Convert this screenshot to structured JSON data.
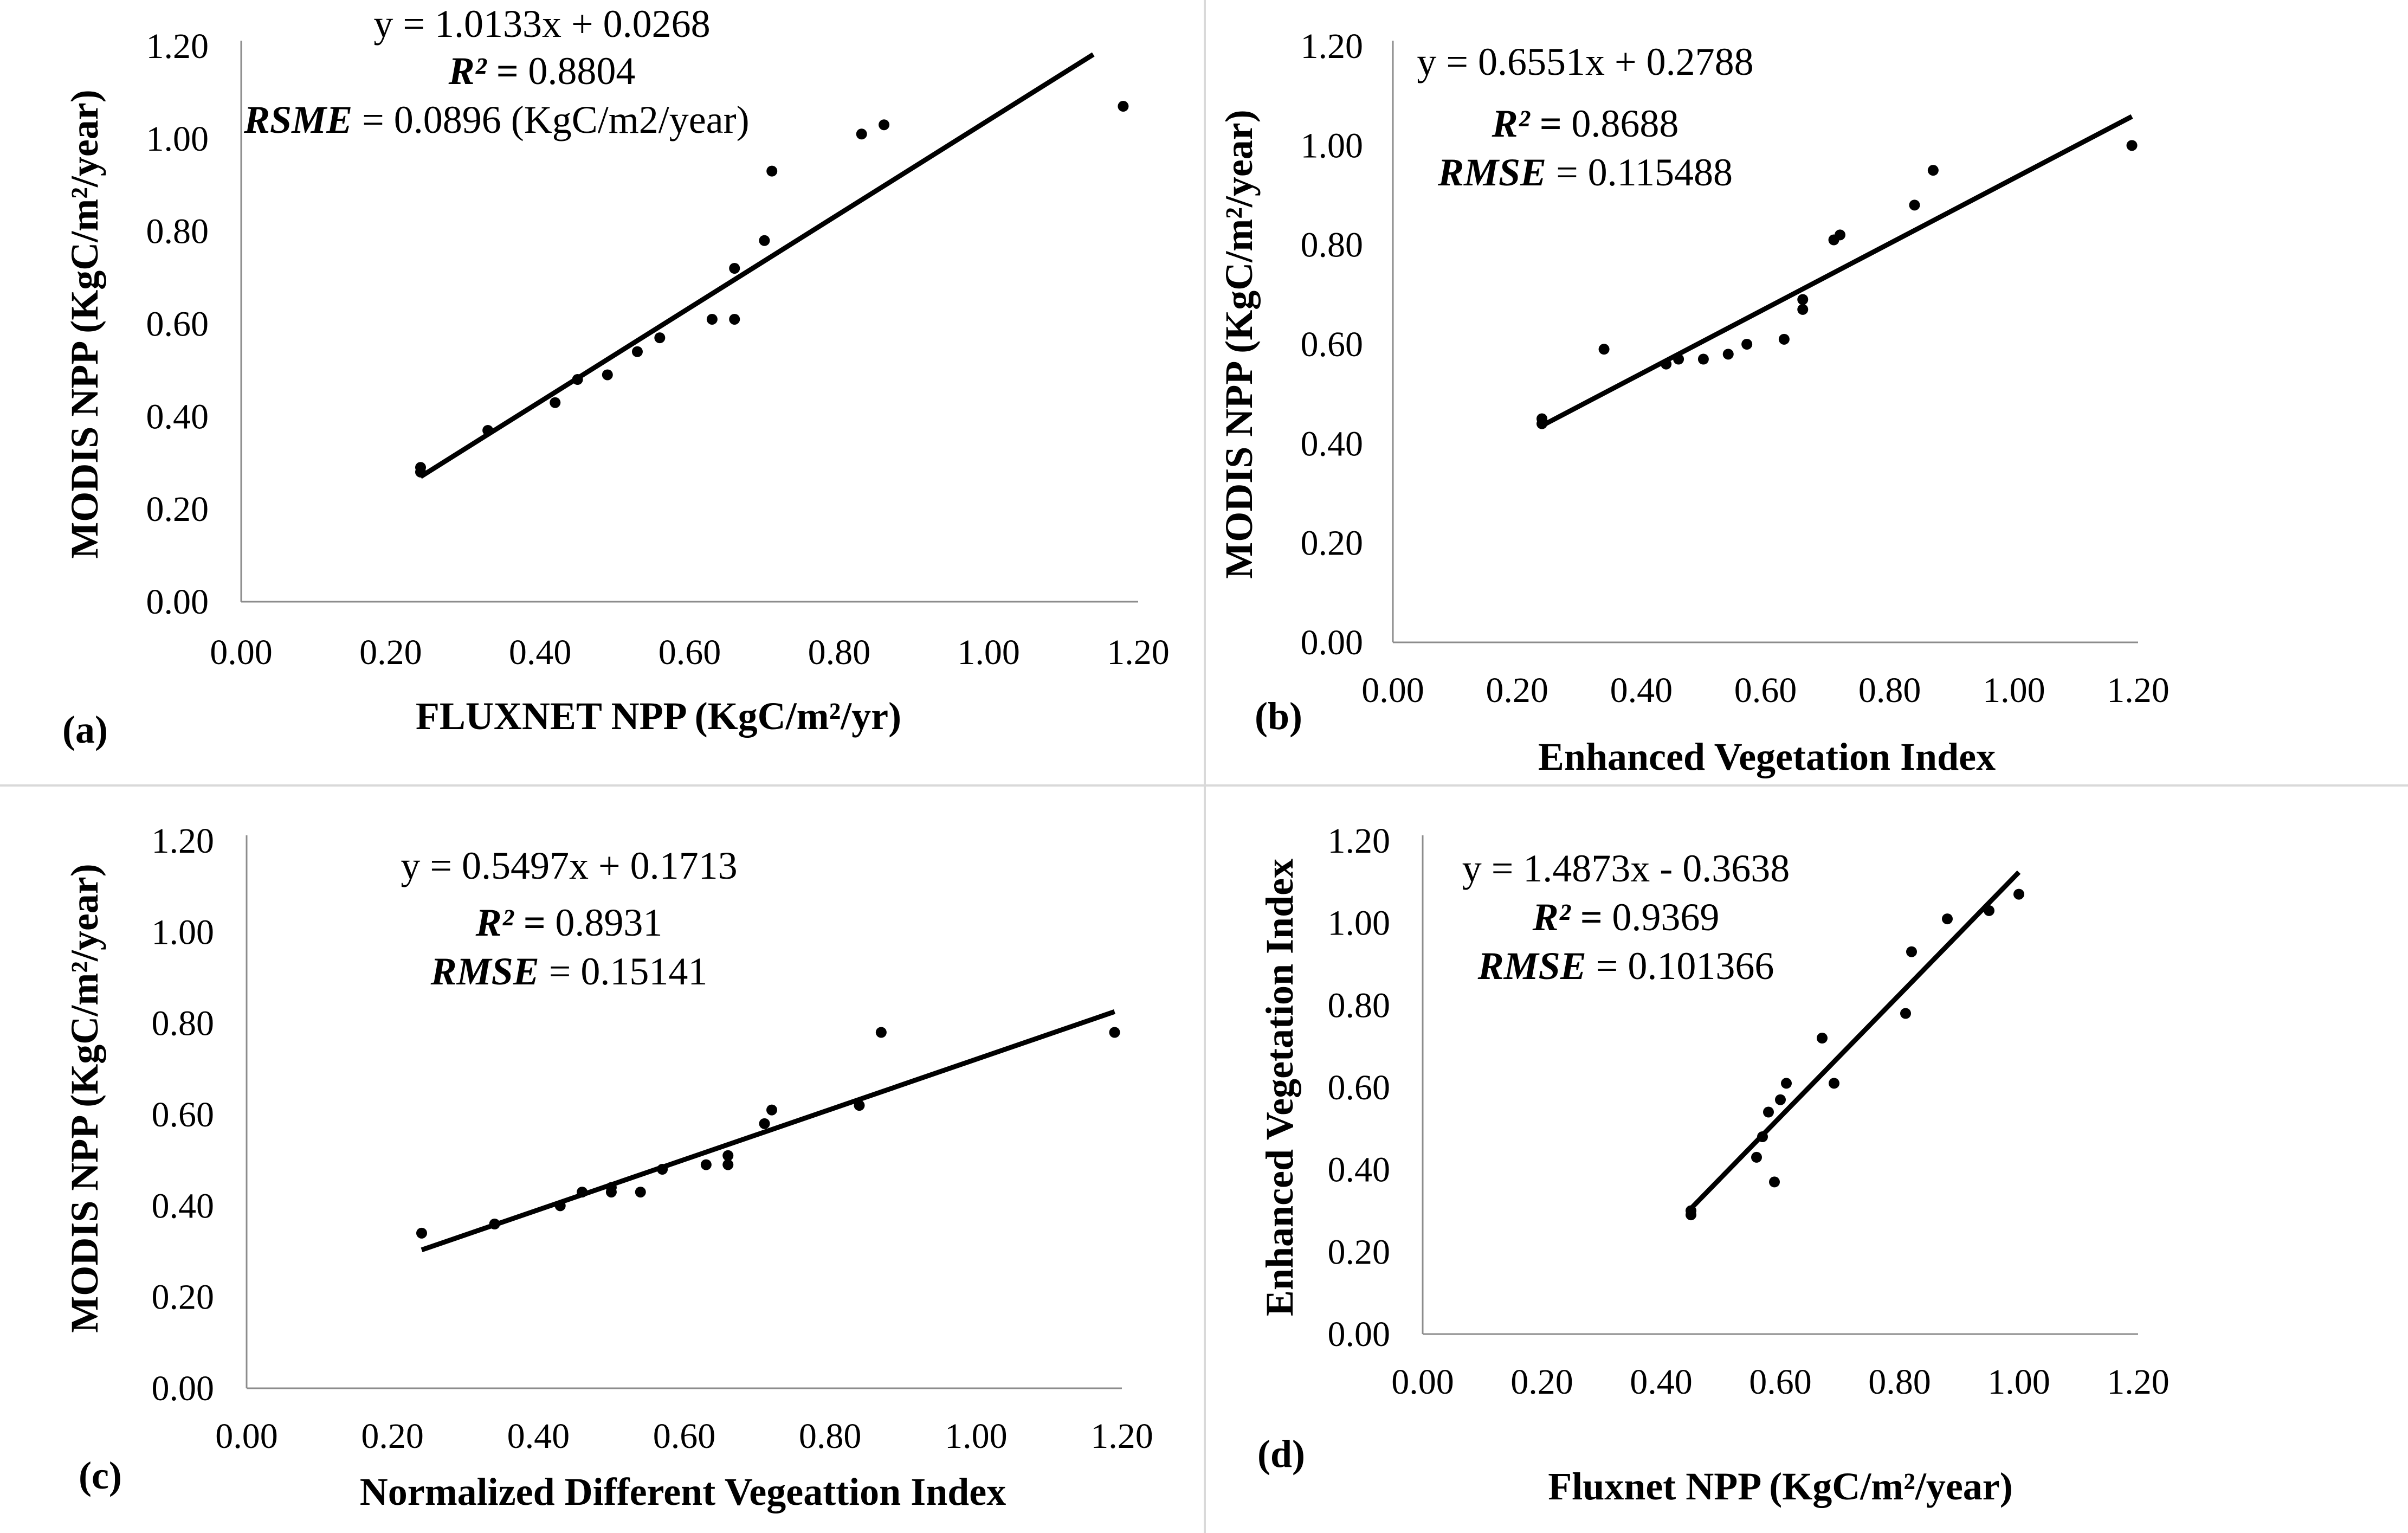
{
  "figure": {
    "background": "#ffffff",
    "ink": "#000000"
  },
  "chart_data": [
    {
      "id": "a",
      "type": "scatter",
      "panel_label": "(a)",
      "xlabel": "FLUXNET NPP (KgC/m²/yr)",
      "ylabel": "MODIS NPP (KgC/m²/year)",
      "xlim": [
        0,
        1.2
      ],
      "ylim": [
        0,
        1.2
      ],
      "xticks": [
        "0.00",
        "0.20",
        "0.40",
        "0.60",
        "0.80",
        "1.00",
        "1.20"
      ],
      "yticks": [
        "0.00",
        "0.20",
        "0.40",
        "0.60",
        "0.80",
        "1.00",
        "1.20"
      ],
      "annotations": [
        {
          "prefix": "",
          "italic": "",
          "rest": "y = 1.0133x + 0.0268"
        },
        {
          "prefix": "",
          "italic": "R² = ",
          "rest": "0.8804"
        },
        {
          "prefix": "",
          "italic": "RSME",
          "rest": "  = 0.0896 (KgC/m2/year)"
        }
      ],
      "trendline": {
        "slope": 1.0133,
        "intercept": 0.0268,
        "x_from": 0.24,
        "x_to": 1.14
      },
      "points": [
        [
          0.24,
          0.28
        ],
        [
          0.24,
          0.29
        ],
        [
          0.33,
          0.37
        ],
        [
          0.42,
          0.43
        ],
        [
          0.45,
          0.48
        ],
        [
          0.49,
          0.49
        ],
        [
          0.53,
          0.54
        ],
        [
          0.56,
          0.57
        ],
        [
          0.63,
          0.61
        ],
        [
          0.66,
          0.61
        ],
        [
          0.66,
          0.72
        ],
        [
          0.7,
          0.78
        ],
        [
          0.71,
          0.93
        ],
        [
          0.83,
          1.01
        ],
        [
          0.86,
          1.03
        ],
        [
          1.18,
          1.07
        ]
      ]
    },
    {
      "id": "b",
      "type": "scatter",
      "panel_label": "(b)",
      "xlabel": "Enhanced Vegetation Index",
      "ylabel": "MODIS NPP (KgC/m²/year)",
      "xlim": [
        0,
        1.2
      ],
      "ylim": [
        0,
        1.2
      ],
      "xticks": [
        "0.00",
        "0.20",
        "0.40",
        "0.60",
        "0.80",
        "1.00",
        "1.20"
      ],
      "yticks": [
        "0.00",
        "0.20",
        "0.40",
        "0.60",
        "0.80",
        "1.00",
        "1.20"
      ],
      "annotations": [
        {
          "prefix": "",
          "italic": "",
          "rest": "y = 0.6551x + 0.2788"
        },
        {
          "prefix": "",
          "italic": "R² = ",
          "rest": "0.8688"
        },
        {
          "prefix": "",
          "italic": "RMSE",
          "rest": " = 0.115488"
        }
      ],
      "trendline": {
        "slope": 0.6551,
        "intercept": 0.2788,
        "x_from": 0.24,
        "x_to": 1.19
      },
      "points": [
        [
          0.24,
          0.44
        ],
        [
          0.24,
          0.45
        ],
        [
          0.34,
          0.59
        ],
        [
          0.44,
          0.56
        ],
        [
          0.46,
          0.57
        ],
        [
          0.5,
          0.57
        ],
        [
          0.54,
          0.58
        ],
        [
          0.57,
          0.6
        ],
        [
          0.63,
          0.61
        ],
        [
          0.66,
          0.67
        ],
        [
          0.66,
          0.69
        ],
        [
          0.71,
          0.81
        ],
        [
          0.72,
          0.82
        ],
        [
          0.84,
          0.88
        ],
        [
          0.87,
          0.95
        ],
        [
          1.19,
          1.0
        ]
      ]
    },
    {
      "id": "c",
      "type": "scatter",
      "panel_label": "(c)",
      "xlabel": "Normalized Different Vegeattion Index",
      "ylabel": "MODIS NPP (KgC/m²/year)",
      "xlim": [
        0,
        1.2
      ],
      "ylim": [
        0,
        1.2
      ],
      "xticks": [
        "0.00",
        "0.20",
        "0.40",
        "0.60",
        "0.80",
        "1.00",
        "1.20"
      ],
      "yticks": [
        "0.00",
        "0.20",
        "0.40",
        "0.60",
        "0.80",
        "1.00",
        "1.20"
      ],
      "annotations": [
        {
          "prefix": "",
          "italic": "",
          "rest": "y = 0.5497x + 0.1713"
        },
        {
          "prefix": "",
          "italic": "R² = ",
          "rest": "0.8931"
        },
        {
          "prefix": "",
          "italic": "RMSE",
          "rest": " = 0.15141"
        }
      ],
      "trendline": {
        "slope": 0.5497,
        "intercept": 0.1713,
        "x_from": 0.24,
        "x_to": 1.19
      },
      "points": [
        [
          0.24,
          0.34
        ],
        [
          0.34,
          0.36
        ],
        [
          0.43,
          0.4
        ],
        [
          0.46,
          0.43
        ],
        [
          0.5,
          0.43
        ],
        [
          0.5,
          0.44
        ],
        [
          0.54,
          0.43
        ],
        [
          0.57,
          0.48
        ],
        [
          0.63,
          0.49
        ],
        [
          0.66,
          0.49
        ],
        [
          0.66,
          0.51
        ],
        [
          0.71,
          0.58
        ],
        [
          0.72,
          0.61
        ],
        [
          0.84,
          0.62
        ],
        [
          0.87,
          0.78
        ],
        [
          1.19,
          0.78
        ]
      ]
    },
    {
      "id": "d",
      "type": "scatter",
      "panel_label": "(d)",
      "xlabel": "Fluxnet NPP (KgC/m²/year)",
      "ylabel": "Enhanced Vegetation Index",
      "xlim": [
        0,
        1.2
      ],
      "ylim": [
        0,
        1.2
      ],
      "xticks": [
        "0.00",
        "0.20",
        "0.40",
        "0.60",
        "0.80",
        "1.00",
        "1.20"
      ],
      "yticks": [
        "0.00",
        "0.20",
        "0.40",
        "0.60",
        "0.80",
        "1.00",
        "1.20"
      ],
      "annotations": [
        {
          "prefix": "",
          "italic": "",
          "rest": "y = 1.4873x - 0.3638"
        },
        {
          "prefix": "",
          "italic": "R² = ",
          "rest": "0.9369"
        },
        {
          "prefix": "",
          "italic": "RMSE",
          "rest": " = 0.101366"
        }
      ],
      "trendline": {
        "slope": 1.4873,
        "intercept": -0.3638,
        "x_from": 0.45,
        "x_to": 1.0
      },
      "points": [
        [
          0.45,
          0.29
        ],
        [
          0.45,
          0.3
        ],
        [
          0.56,
          0.43
        ],
        [
          0.57,
          0.48
        ],
        [
          0.58,
          0.54
        ],
        [
          0.59,
          0.37
        ],
        [
          0.6,
          0.57
        ],
        [
          0.61,
          0.61
        ],
        [
          0.67,
          0.72
        ],
        [
          0.69,
          0.61
        ],
        [
          0.81,
          0.78
        ],
        [
          0.82,
          0.93
        ],
        [
          0.88,
          1.01
        ],
        [
          0.95,
          1.03
        ],
        [
          1.0,
          1.07
        ]
      ]
    }
  ]
}
